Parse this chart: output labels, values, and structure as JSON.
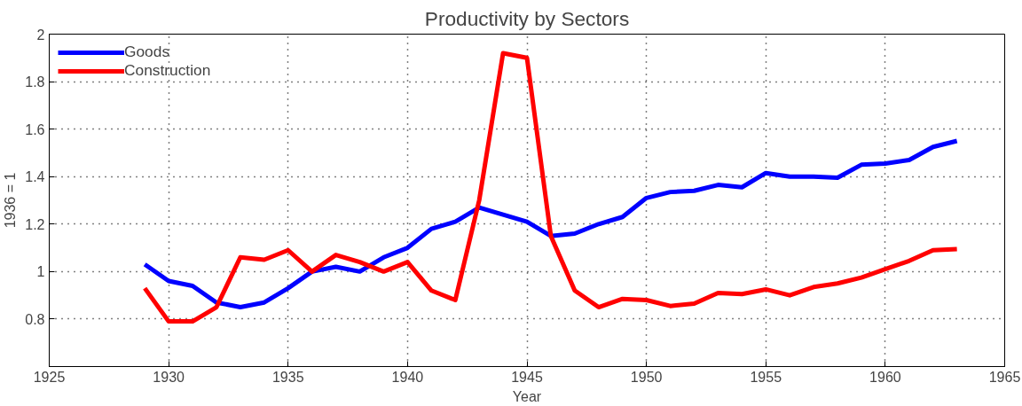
{
  "chart_data": {
    "type": "line",
    "title": "Productivity by Sectors",
    "xlabel": "Year",
    "ylabel": "1936 = 1",
    "x": [
      1929,
      1930,
      1931,
      1932,
      1933,
      1934,
      1935,
      1936,
      1937,
      1938,
      1939,
      1940,
      1941,
      1942,
      1943,
      1944,
      1945,
      1946,
      1947,
      1948,
      1949,
      1950,
      1951,
      1952,
      1953,
      1954,
      1955,
      1956,
      1957,
      1958,
      1959,
      1960,
      1961,
      1962,
      1963
    ],
    "series": [
      {
        "name": "Goods",
        "color": "#0000ff",
        "values": [
          1.03,
          0.96,
          0.94,
          0.87,
          0.85,
          0.87,
          0.93,
          1.0,
          1.02,
          1.0,
          1.06,
          1.1,
          1.18,
          1.21,
          1.27,
          1.24,
          1.21,
          1.15,
          1.16,
          1.2,
          1.23,
          1.31,
          1.335,
          1.34,
          1.365,
          1.355,
          1.415,
          1.4,
          1.4,
          1.395,
          1.45,
          1.455,
          1.47,
          1.525,
          1.55
        ]
      },
      {
        "name": "Construction",
        "color": "#ff0000",
        "values": [
          0.93,
          0.79,
          0.79,
          0.85,
          1.06,
          1.05,
          1.09,
          1.0,
          1.07,
          1.04,
          1.0,
          1.04,
          0.92,
          0.88,
          1.3,
          1.92,
          1.9,
          1.15,
          0.92,
          0.85,
          0.885,
          0.88,
          0.855,
          0.865,
          0.91,
          0.905,
          0.925,
          0.9,
          0.935,
          0.95,
          0.975,
          1.01,
          1.045,
          1.09,
          1.095
        ]
      }
    ],
    "xlim": [
      1925,
      1965
    ],
    "xticks": [
      1925,
      1930,
      1935,
      1940,
      1945,
      1950,
      1955,
      1960,
      1965
    ],
    "ylim": [
      0.6,
      2
    ],
    "yticks": [
      {
        "value": 0.6,
        "label": null
      },
      0.8,
      1,
      1.2,
      1.4,
      1.6,
      1.8,
      2
    ],
    "grid": true,
    "legend": "top left",
    "line_style": "solid",
    "marker": "none"
  }
}
